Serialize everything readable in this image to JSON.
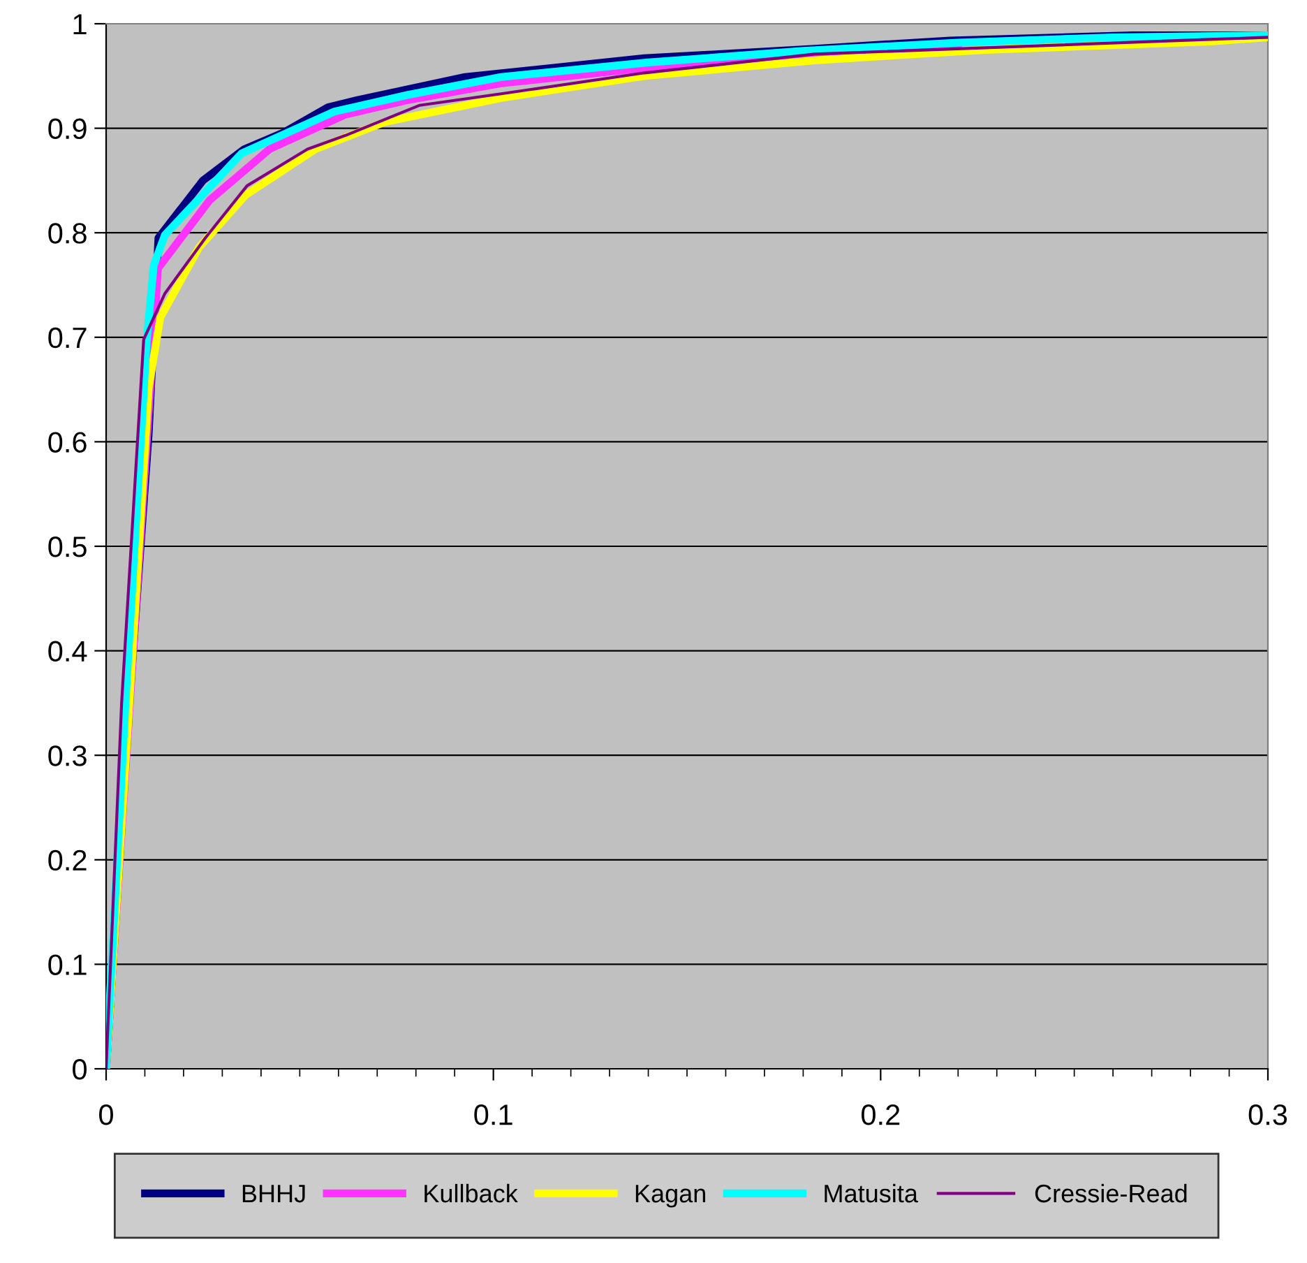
{
  "chart_data": {
    "type": "line",
    "xlim": [
      0,
      0.3
    ],
    "ylim": [
      0,
      1
    ],
    "xticks": [
      0,
      0.1,
      0.2,
      0.3
    ],
    "yticks": [
      0,
      0.1,
      0.2,
      0.3,
      0.4,
      0.5,
      0.6,
      0.7,
      0.8,
      0.9,
      1
    ],
    "grid": "y",
    "legend": "bottom",
    "marker": "none",
    "line_style": "solid",
    "series": [
      {
        "name": "BHHJ",
        "color": "#000080",
        "x": [
          0,
          0.006,
          0.011,
          0.0135,
          0.025,
          0.0357,
          0.0459,
          0.0573,
          0.065,
          0.0927,
          0.139,
          0.183,
          0.218,
          0.265,
          0.3
        ],
        "values": [
          0,
          0.35,
          0.608,
          0.795,
          0.85,
          0.88,
          0.896,
          0.92,
          0.927,
          0.949,
          0.967,
          0.976,
          0.984,
          0.989,
          0.989
        ]
      },
      {
        "name": "Kullback",
        "color": "#ff33ff",
        "x": [
          0,
          0.0134,
          0.0267,
          0.0422,
          0.0617,
          0.078,
          0.102,
          0.14,
          0.18,
          0.22
        ],
        "values": [
          0,
          0.766,
          0.831,
          0.88,
          0.913,
          0.927,
          0.943,
          0.958,
          0.97,
          0.98
        ]
      },
      {
        "name": "Kagan",
        "color": "#ffff00",
        "x": [
          0,
          0.006,
          0.011,
          0.014,
          0.024,
          0.036,
          0.054,
          0.072,
          0.102,
          0.139,
          0.183,
          0.227,
          0.285,
          0.3
        ],
        "values": [
          0,
          0.35,
          0.652,
          0.719,
          0.786,
          0.836,
          0.88,
          0.906,
          0.929,
          0.95,
          0.965,
          0.975,
          0.983,
          0.987
        ]
      },
      {
        "name": "Matusita",
        "color": "#00ffff",
        "x": [
          0,
          0.005,
          0.0105,
          0.0123,
          0.0152,
          0.035,
          0.059,
          0.078,
          0.102,
          0.14,
          0.18,
          0.22,
          0.26,
          0.3
        ],
        "values": [
          0,
          0.35,
          0.698,
          0.769,
          0.798,
          0.876,
          0.916,
          0.932,
          0.949,
          0.963,
          0.974,
          0.982,
          0.987,
          0.989
        ]
      },
      {
        "name": "Cressie-Read",
        "color": "#800080",
        "x": [
          0,
          0.004,
          0.0097,
          0.0152,
          0.0256,
          0.0364,
          0.052,
          0.0617,
          0.081,
          0.102,
          0.139,
          0.183,
          0.227,
          0.285,
          0.3
        ],
        "values": [
          0,
          0.35,
          0.698,
          0.742,
          0.795,
          0.845,
          0.88,
          0.893,
          0.922,
          0.933,
          0.953,
          0.971,
          0.977,
          0.985,
          0.987
        ]
      }
    ]
  }
}
